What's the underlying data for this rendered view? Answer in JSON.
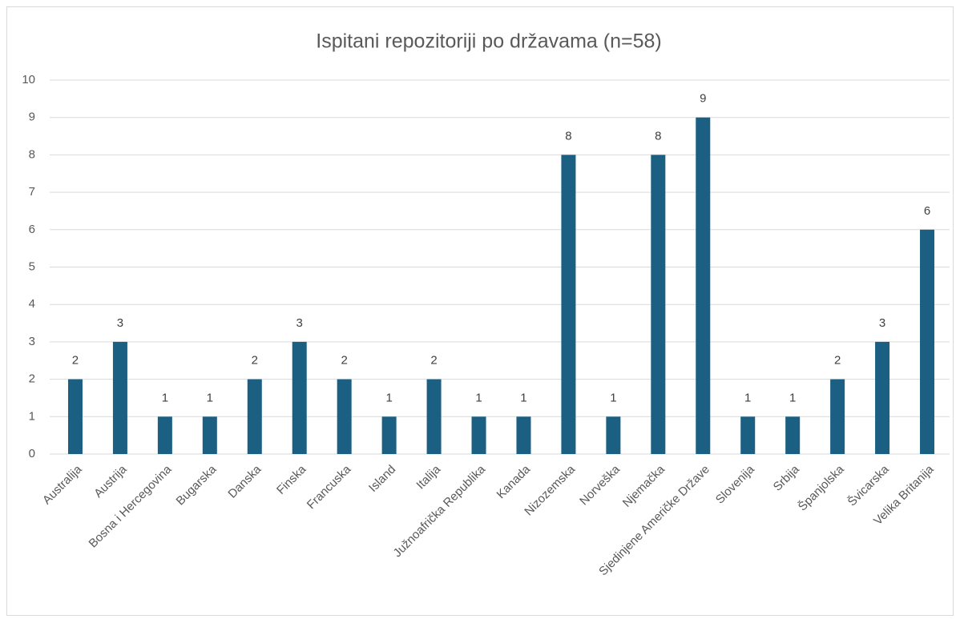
{
  "chart_data": {
    "type": "bar",
    "title": "Ispitani repozitoriji po državama (n=58)",
    "categories": [
      "Australija",
      "Austrija",
      "Bosna i Hercegovina",
      "Bugarska",
      "Danska",
      "Finska",
      "Francuska",
      "Island",
      "Italija",
      "Južnoafrička Republika",
      "Kanada",
      "Nizozemska",
      "Norveška",
      "Njemačka",
      "Sjedinjene Američke Države",
      "Slovenija",
      "Srbija",
      "Španjolska",
      "Švicarska",
      "Velika Britanija"
    ],
    "values": [
      2,
      3,
      1,
      1,
      2,
      3,
      2,
      1,
      2,
      1,
      1,
      8,
      1,
      8,
      9,
      1,
      1,
      2,
      3,
      6
    ],
    "color": "#1b5f83",
    "ylim": [
      0,
      10
    ],
    "yticks": [
      0,
      1,
      2,
      3,
      4,
      5,
      6,
      7,
      8,
      9,
      10
    ],
    "grid": true
  }
}
